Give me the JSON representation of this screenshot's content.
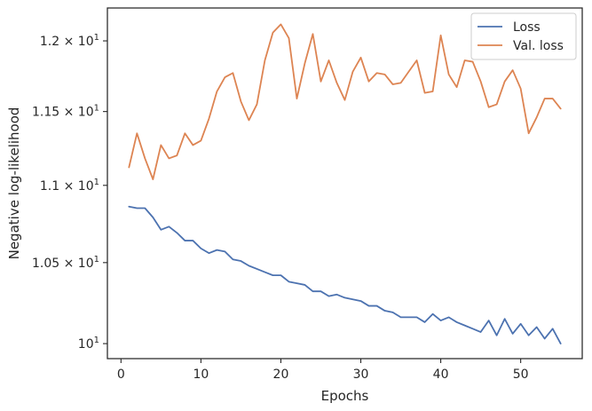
{
  "chart_data": {
    "type": "line",
    "xlabel": "Epochs",
    "ylabel": "Negative log-likelihood",
    "yscale": "log",
    "xlim": [
      -1.7,
      57.7
    ],
    "ylim": [
      9.91,
      12.24
    ],
    "grid": false,
    "legend_position": "top-right",
    "x_ticks": [
      {
        "value": 0,
        "label": "0"
      },
      {
        "value": 10,
        "label": "10"
      },
      {
        "value": 20,
        "label": "20"
      },
      {
        "value": 30,
        "label": "30"
      },
      {
        "value": 40,
        "label": "40"
      },
      {
        "value": 50,
        "label": "50"
      }
    ],
    "y_ticks": [
      {
        "value": 10.0,
        "label": "10",
        "exp": "1",
        "prefix": ""
      },
      {
        "value": 10.5,
        "label": "10",
        "exp": "1",
        "prefix": "1.05 × "
      },
      {
        "value": 11.0,
        "label": "10",
        "exp": "1",
        "prefix": "1.1 × "
      },
      {
        "value": 11.5,
        "label": "10",
        "exp": "1",
        "prefix": "1.15 × "
      },
      {
        "value": 12.0,
        "label": "10",
        "exp": "1",
        "prefix": "1.2 × "
      }
    ],
    "x": [
      1,
      2,
      3,
      4,
      5,
      6,
      7,
      8,
      9,
      10,
      11,
      12,
      13,
      14,
      15,
      16,
      17,
      18,
      19,
      20,
      21,
      22,
      23,
      24,
      25,
      26,
      27,
      28,
      29,
      30,
      31,
      32,
      33,
      34,
      35,
      36,
      37,
      38,
      39,
      40,
      41,
      42,
      43,
      44,
      45,
      46,
      47,
      48,
      49,
      50,
      51,
      52,
      53,
      54,
      55
    ],
    "series": [
      {
        "name": "Loss",
        "color": "#4c72b0",
        "values": [
          10.86,
          10.85,
          10.85,
          10.79,
          10.71,
          10.73,
          10.69,
          10.64,
          10.64,
          10.59,
          10.56,
          10.58,
          10.57,
          10.52,
          10.51,
          10.48,
          10.46,
          10.44,
          10.42,
          10.42,
          10.38,
          10.37,
          10.36,
          10.32,
          10.32,
          10.29,
          10.3,
          10.28,
          10.27,
          10.26,
          10.23,
          10.23,
          10.2,
          10.19,
          10.16,
          10.16,
          10.16,
          10.13,
          10.18,
          10.14,
          10.16,
          10.13,
          10.11,
          10.09,
          10.07,
          10.14,
          10.05,
          10.15,
          10.06,
          10.12,
          10.05,
          10.1,
          10.03,
          10.09,
          10.0
        ]
      },
      {
        "name": "Val. loss",
        "color": "#dd8452",
        "values": [
          11.12,
          11.35,
          11.18,
          11.04,
          11.27,
          11.18,
          11.2,
          11.35,
          11.27,
          11.3,
          11.45,
          11.64,
          11.74,
          11.77,
          11.57,
          11.44,
          11.55,
          11.86,
          12.06,
          12.12,
          12.02,
          11.59,
          11.84,
          12.05,
          11.71,
          11.86,
          11.7,
          11.58,
          11.78,
          11.88,
          11.71,
          11.77,
          11.76,
          11.69,
          11.7,
          11.78,
          11.86,
          11.63,
          11.64,
          12.04,
          11.76,
          11.67,
          11.86,
          11.85,
          11.71,
          11.53,
          11.55,
          11.71,
          11.79,
          11.66,
          11.35,
          11.46,
          11.59,
          11.59,
          11.52
        ]
      }
    ]
  }
}
